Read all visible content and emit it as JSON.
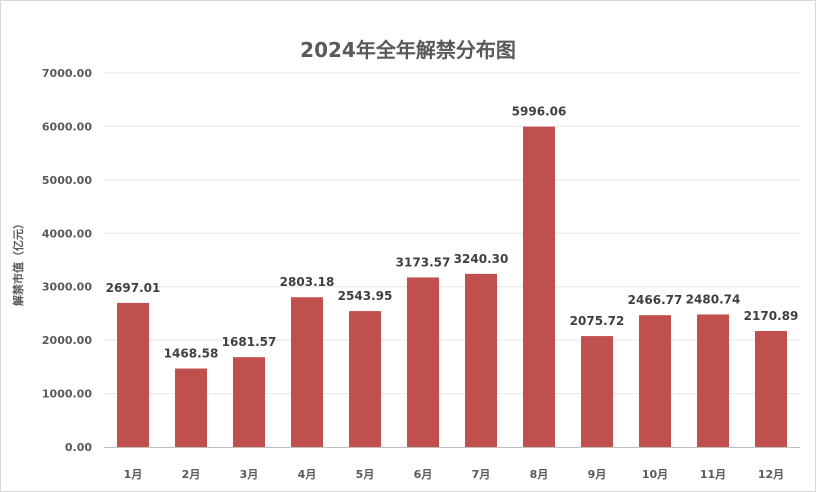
{
  "chart_data": {
    "type": "bar",
    "title": "2024年全年解禁分布图",
    "xlabel": "",
    "ylabel": "解禁市值（亿元）",
    "categories": [
      "1月",
      "2月",
      "3月",
      "4月",
      "5月",
      "6月",
      "7月",
      "8月",
      "9月",
      "10月",
      "11月",
      "12月"
    ],
    "series": [
      {
        "values": [
          2697.01,
          1468.58,
          1681.57,
          2803.18,
          2543.95,
          3173.57,
          3240.3,
          5996.06,
          2075.72,
          2466.77,
          2480.74,
          2170.89
        ]
      }
    ],
    "data_labels": [
      "2697.01",
      "1468.58",
      "1681.57",
      "2803.18",
      "2543.95",
      "3173.57",
      "3240.30",
      "5996.06",
      "2075.72",
      "2466.77",
      "2480.74",
      "2170.89"
    ],
    "yticks": [
      "0.00",
      "1000.00",
      "2000.00",
      "3000.00",
      "4000.00",
      "5000.00",
      "6000.00",
      "7000.00"
    ],
    "ylim": [
      0,
      7000
    ],
    "grid": true,
    "legend": "none",
    "bar_color": "#c0504d"
  }
}
